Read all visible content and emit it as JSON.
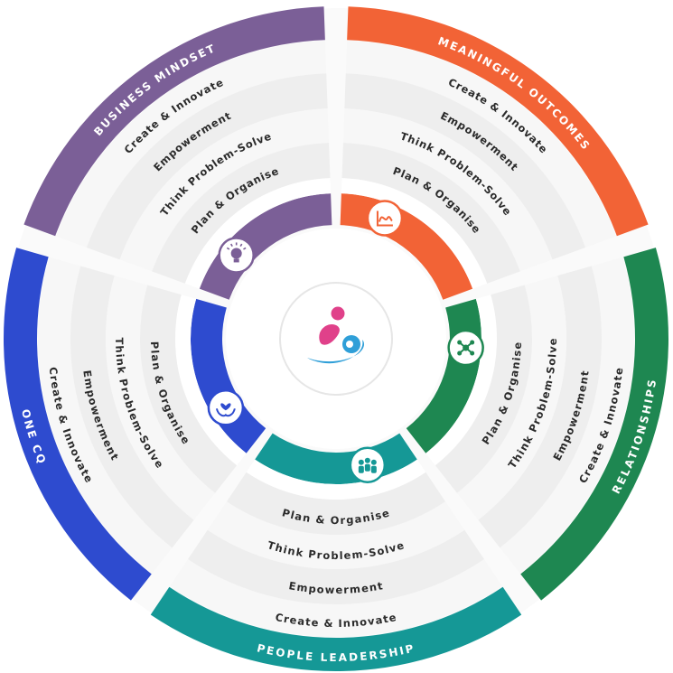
{
  "sections": [
    {
      "id": "business-mindset",
      "title": "BUSINESS MINDSET",
      "color": "#7b5f97",
      "icon": "lightbulb-icon"
    },
    {
      "id": "meaningful-outcomes",
      "title": "MEANINGFUL OUTCOMES",
      "color": "#f26336",
      "icon": "chart-line-icon"
    },
    {
      "id": "relationships",
      "title": "RELATIONSHIPS",
      "color": "#1e8751",
      "icon": "network-icon"
    },
    {
      "id": "people-leadership",
      "title": "PEOPLE LEADERSHIP",
      "color": "#159896",
      "icon": "team-icon"
    },
    {
      "id": "one-cq",
      "title": "ONE CQ",
      "color": "#2e4bcf",
      "icon": "care-hands-icon"
    }
  ],
  "rings": [
    "Create & Innovate",
    "Empowerment",
    "Think Problem-Solve",
    "Plan & Organise"
  ],
  "colors": {
    "ring_outer": "#f7f7f7",
    "ring_mid1": "#eeeeee",
    "ring_mid2": "#f7f7f7",
    "ring_inner": "#eeeeee",
    "center_disc": "#ffffff",
    "logo_pink": "#e0418a",
    "logo_blue": "#2f9fd8"
  },
  "center": {
    "icon": "cq-logo-icon"
  }
}
